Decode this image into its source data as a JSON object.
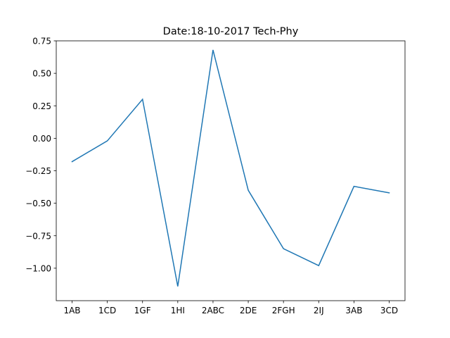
{
  "chart_data": {
    "type": "line",
    "title": "Date:18-10-2017 Tech-Phy",
    "xlabel": "",
    "ylabel": "",
    "categories": [
      "1AB",
      "1CD",
      "1GF",
      "1HI",
      "2ABC",
      "2DE",
      "2FGH",
      "2IJ",
      "3AB",
      "3CD"
    ],
    "series": [
      {
        "values": [
          -0.18,
          -0.02,
          0.3,
          -1.14,
          0.68,
          -0.4,
          -0.85,
          -0.98,
          -0.37,
          -0.42
        ],
        "color": "#1f77b4"
      }
    ],
    "ylim": [
      -1.25,
      0.75
    ],
    "yticks": [
      0.75,
      0.5,
      0.25,
      0.0,
      -0.25,
      -0.5,
      -0.75,
      -1.0
    ],
    "ytick_labels": [
      "0.75",
      "0.50",
      "0.25",
      "0.00",
      "−0.25",
      "−0.50",
      "−0.75",
      "−1.00"
    ],
    "grid": false,
    "legend": "none"
  }
}
